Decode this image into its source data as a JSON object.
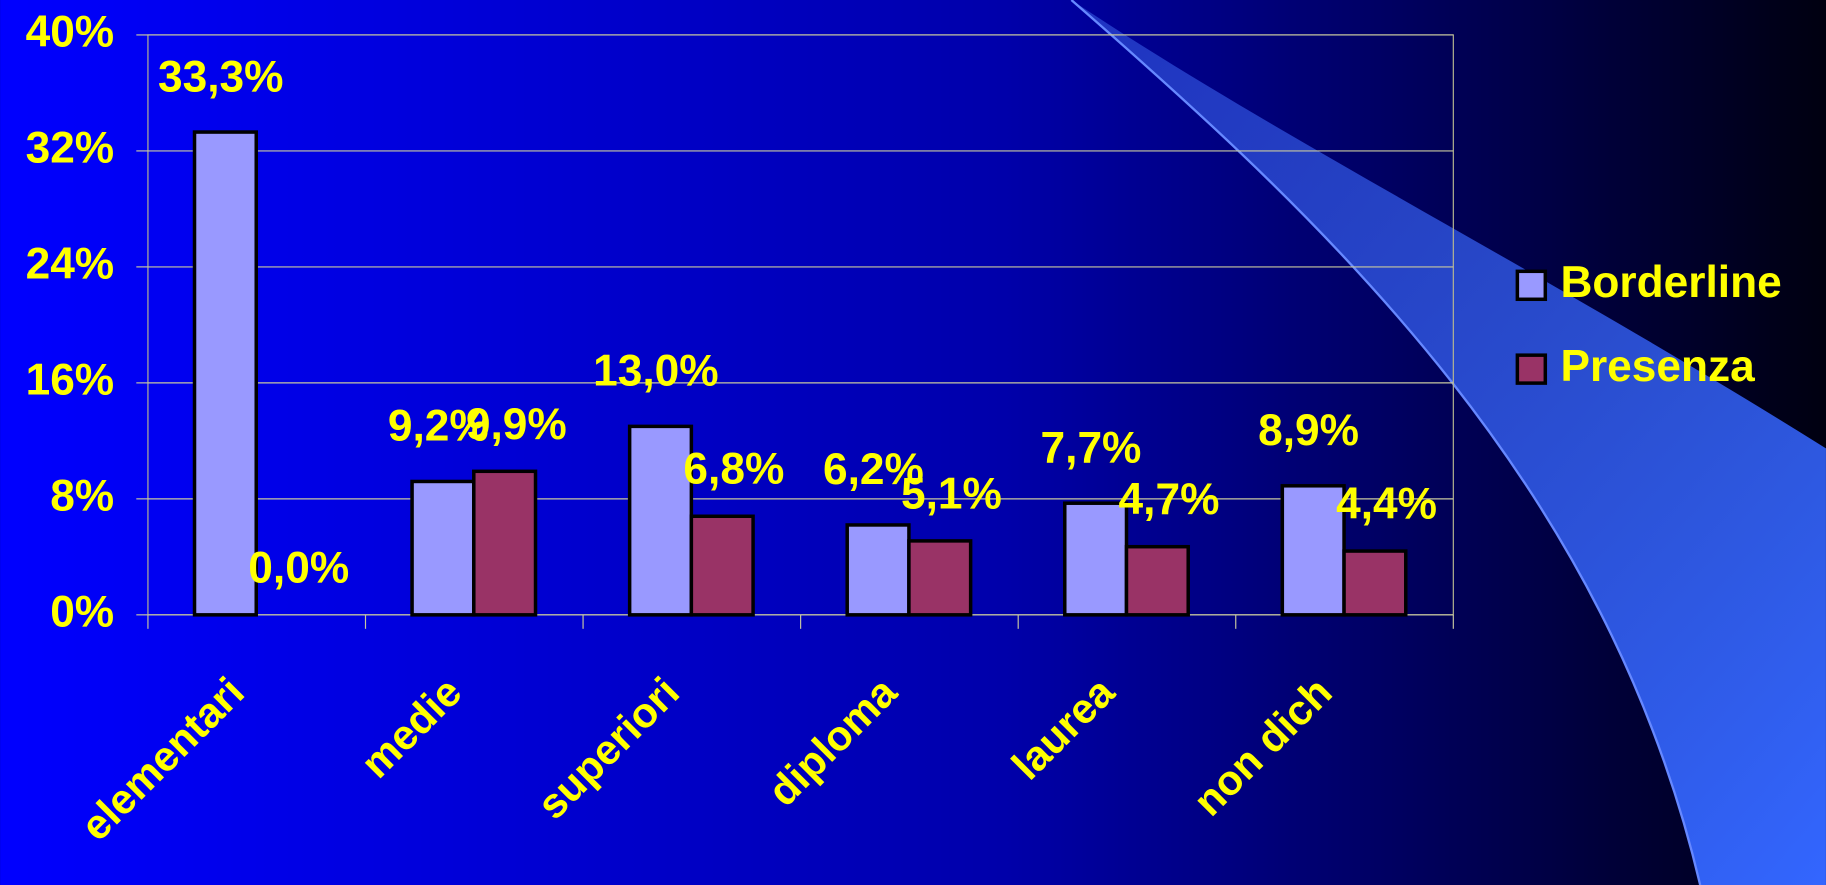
{
  "chart_data": {
    "type": "bar",
    "categories": [
      "elementari",
      "medie",
      "superiori",
      "diploma",
      "laurea",
      "non dich"
    ],
    "series": [
      {
        "name": "Borderline",
        "color": "#9999ff",
        "values": [
          33.3,
          9.2,
          13.0,
          6.2,
          7.7,
          8.9
        ],
        "value_labels": [
          "33,3%",
          "9,2%",
          "13,0%",
          "6,2%",
          "7,7%",
          "8,9%"
        ]
      },
      {
        "name": "Presenza",
        "color": "#993366",
        "values": [
          0.0,
          9.9,
          6.8,
          5.1,
          4.7,
          4.4
        ],
        "value_labels": [
          "0,0%",
          "9,9%",
          "6,8%",
          "5,1%",
          "4,7%",
          "4,4%"
        ]
      }
    ],
    "ylim": [
      0,
      40
    ],
    "yticks": [
      {
        "value": 0,
        "label": "0%"
      },
      {
        "value": 8,
        "label": "8%"
      },
      {
        "value": 16,
        "label": "16%"
      },
      {
        "value": 24,
        "label": "24%"
      },
      {
        "value": 32,
        "label": "32%"
      },
      {
        "value": 40,
        "label": "40%"
      }
    ],
    "grid": true,
    "legend": "right"
  }
}
